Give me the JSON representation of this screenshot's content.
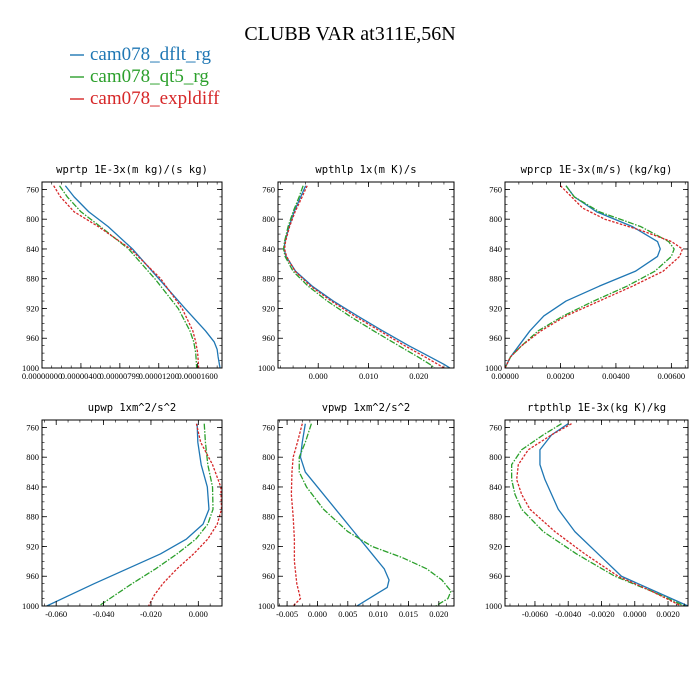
{
  "title": "CLUBB VAR at311E,56N",
  "legend": [
    {
      "name": "cam078_dflt_rg",
      "color": "#1f77b4"
    },
    {
      "name": "cam078_qt5_rg",
      "color": "#2ca02c"
    },
    {
      "name": "cam078_expldiff",
      "color": "#d62728"
    }
  ],
  "chart_data": [
    {
      "type": "line",
      "title": "wprtp  1E-3x(m kg)/(s kg)",
      "y_ticks": [
        760,
        800,
        840,
        880,
        920,
        960,
        1000
      ],
      "y_ticklabels": [
        "760",
        "800",
        "840",
        "880",
        "920",
        "960",
        "1000"
      ],
      "ylim": [
        1000,
        750
      ],
      "xlim": [
        0.0,
        1.85e-05
      ],
      "x_ticks": [
        0.0,
        4e-06,
        8e-06,
        1.2e-05,
        1.6e-05
      ],
      "x_ticklabels": [
        "0.00000000",
        "0.00000400",
        "0.00000799",
        "0.00001200",
        "0.00001600"
      ],
      "series": [
        {
          "name": "cam078_dflt_rg",
          "y": [
            755,
            770,
            790,
            810,
            840,
            880,
            920,
            950,
            965,
            975,
            985,
            1000
          ],
          "x": [
            2.4e-06,
            3.3e-06,
            4.8e-06,
            6.8e-06,
            9.3e-06,
            1.2e-05,
            1.47e-05,
            1.68e-05,
            1.77e-05,
            1.8e-05,
            1.81e-05,
            1.83e-05
          ]
        },
        {
          "name": "cam078_qt5_rg",
          "y": [
            755,
            770,
            790,
            810,
            840,
            880,
            920,
            950,
            965,
            980,
            1000
          ],
          "x": [
            1.8e-06,
            2.6e-06,
            4e-06,
            6e-06,
            8.9e-06,
            1.16e-05,
            1.4e-05,
            1.52e-05,
            1.56e-05,
            1.58e-05,
            1.59e-05
          ]
        },
        {
          "name": "cam078_expldiff",
          "y": [
            755,
            770,
            790,
            810,
            840,
            880,
            920,
            950,
            965,
            980,
            1000
          ],
          "x": [
            1.2e-06,
            1.9e-06,
            3.3e-06,
            5.8e-06,
            9.1e-06,
            1.22e-05,
            1.44e-05,
            1.55e-05,
            1.58e-05,
            1.6e-05,
            1.61e-05
          ]
        }
      ]
    },
    {
      "type": "line",
      "title": "wpthlp  1x(m K)/s",
      "y_ticks": [
        760,
        800,
        840,
        880,
        920,
        960,
        1000
      ],
      "y_ticklabels": [
        "760",
        "800",
        "840",
        "880",
        "920",
        "960",
        "1000"
      ],
      "ylim": [
        1000,
        750
      ],
      "xlim": [
        -0.008,
        0.027
      ],
      "x_ticks": [
        0.0,
        0.01,
        0.02
      ],
      "x_ticklabels": [
        "0.000",
        "0.010",
        "0.020"
      ],
      "series": [
        {
          "name": "cam078_dflt_rg",
          "y": [
            755,
            770,
            790,
            810,
            830,
            840,
            850,
            870,
            890,
            910,
            930,
            950,
            970,
            985,
            995,
            1000
          ],
          "x": [
            -0.0025,
            -0.0035,
            -0.0048,
            -0.0058,
            -0.0066,
            -0.0068,
            -0.0064,
            -0.0045,
            -0.0012,
            0.003,
            0.0078,
            0.0128,
            0.018,
            0.0222,
            0.025,
            0.0262
          ]
        },
        {
          "name": "cam078_qt5_rg",
          "y": [
            755,
            770,
            790,
            810,
            830,
            840,
            850,
            870,
            890,
            910,
            930,
            950,
            970,
            985,
            995,
            1000
          ],
          "x": [
            -0.003,
            -0.0038,
            -0.005,
            -0.006,
            -0.0067,
            -0.0069,
            -0.0066,
            -0.005,
            -0.002,
            0.0018,
            0.0062,
            0.011,
            0.016,
            0.0198,
            0.0222,
            0.0232
          ]
        },
        {
          "name": "cam078_expldiff",
          "y": [
            755,
            770,
            790,
            810,
            830,
            840,
            850,
            870,
            890,
            910,
            930,
            950,
            970,
            985,
            995,
            1000
          ],
          "x": [
            -0.0022,
            -0.0032,
            -0.0046,
            -0.0057,
            -0.0065,
            -0.0067,
            -0.0063,
            -0.0046,
            -0.0015,
            0.0026,
            0.0072,
            0.0122,
            0.0172,
            0.0212,
            0.0238,
            0.025
          ]
        }
      ]
    },
    {
      "type": "line",
      "title": "wprcp  1E-3x(m/s) (kg/kg)",
      "y_ticks": [
        760,
        800,
        840,
        880,
        920,
        960,
        1000
      ],
      "y_ticklabels": [
        "760",
        "800",
        "840",
        "880",
        "920",
        "960",
        "1000"
      ],
      "ylim": [
        1000,
        750
      ],
      "xlim": [
        0.0,
        0.0066
      ],
      "x_ticks": [
        0.0,
        0.002,
        0.004,
        0.006
      ],
      "x_ticklabels": [
        "0.00000",
        "0.00200",
        "0.00400",
        "0.00600"
      ],
      "series": [
        {
          "name": "cam078_dflt_rg",
          "y": [
            755,
            770,
            790,
            810,
            830,
            840,
            850,
            870,
            890,
            910,
            930,
            950,
            970,
            985,
            1000
          ],
          "x": [
            0.0022,
            0.0025,
            0.0033,
            0.0046,
            0.0055,
            0.0056,
            0.0055,
            0.0047,
            0.0034,
            0.0022,
            0.0014,
            0.0009,
            0.0005,
            0.0002,
            0.0
          ]
        },
        {
          "name": "cam078_qt5_rg",
          "y": [
            755,
            770,
            790,
            810,
            830,
            840,
            850,
            870,
            890,
            910,
            930,
            950,
            970,
            985,
            1000
          ],
          "x": [
            0.0022,
            0.0025,
            0.0034,
            0.0049,
            0.0059,
            0.0061,
            0.006,
            0.0054,
            0.0044,
            0.0032,
            0.0021,
            0.0012,
            0.0006,
            0.0002,
            0.0
          ]
        },
        {
          "name": "cam078_expldiff",
          "y": [
            755,
            770,
            785,
            800,
            815,
            830,
            840,
            850,
            870,
            890,
            910,
            930,
            950,
            970,
            985,
            1000
          ],
          "x": [
            0.002,
            0.0024,
            0.0028,
            0.0036,
            0.0049,
            0.006,
            0.0064,
            0.0063,
            0.0057,
            0.0046,
            0.0034,
            0.0022,
            0.0013,
            0.0006,
            0.0002,
            0.0
          ]
        }
      ]
    },
    {
      "type": "line",
      "title": "upwp  1xm^2/s^2",
      "y_ticks": [
        760,
        800,
        840,
        880,
        920,
        960,
        1000
      ],
      "y_ticklabels": [
        "760",
        "800",
        "840",
        "880",
        "920",
        "960",
        "1000"
      ],
      "ylim": [
        1000,
        750
      ],
      "xlim": [
        -0.066,
        0.01
      ],
      "x_ticks": [
        -0.06,
        -0.04,
        -0.02,
        0.0
      ],
      "x_ticklabels": [
        "-0.060",
        "-0.040",
        "-0.020",
        "0.000"
      ],
      "series": [
        {
          "name": "cam078_dflt_rg",
          "y": [
            755,
            780,
            810,
            840,
            870,
            890,
            910,
            930,
            950,
            970,
            985,
            1000
          ],
          "x": [
            -0.0005,
            -0.0002,
            0.0012,
            0.0038,
            0.0045,
            0.002,
            -0.005,
            -0.016,
            -0.03,
            -0.044,
            -0.054,
            -0.064
          ]
        },
        {
          "name": "cam078_qt5_rg",
          "y": [
            755,
            780,
            810,
            840,
            870,
            890,
            910,
            930,
            950,
            970,
            985,
            1000
          ],
          "x": [
            0.0025,
            0.003,
            0.004,
            0.006,
            0.0062,
            0.004,
            -0.001,
            -0.009,
            -0.018,
            -0.028,
            -0.035,
            -0.042
          ]
        },
        {
          "name": "cam078_expldiff",
          "y": [
            755,
            780,
            810,
            840,
            870,
            890,
            910,
            930,
            950,
            970,
            985,
            1000
          ],
          "x": [
            -0.0008,
            0.001,
            0.006,
            0.0095,
            0.0098,
            0.008,
            0.004,
            -0.002,
            -0.009,
            -0.015,
            -0.0185,
            -0.021
          ]
        }
      ]
    },
    {
      "type": "line",
      "title": "vpwp  1xm^2/s^2",
      "y_ticks": [
        760,
        800,
        840,
        880,
        920,
        960,
        1000
      ],
      "y_ticklabels": [
        "760",
        "800",
        "840",
        "880",
        "920",
        "960",
        "1000"
      ],
      "ylim": [
        1000,
        750
      ],
      "xlim": [
        -0.0065,
        0.0225
      ],
      "x_ticks": [
        -0.005,
        0.0,
        0.005,
        0.01,
        0.015,
        0.02
      ],
      "x_ticklabels": [
        "-0.005",
        "0.000",
        "0.005",
        "0.010",
        "0.015",
        "0.020"
      ],
      "series": [
        {
          "name": "cam078_dflt_rg",
          "y": [
            755,
            780,
            800,
            820,
            840,
            870,
            900,
            930,
            950,
            965,
            975,
            985,
            1000
          ],
          "x": [
            -0.002,
            -0.0025,
            -0.0028,
            -0.002,
            0.0,
            0.003,
            0.006,
            0.009,
            0.011,
            0.0118,
            0.0115,
            0.0095,
            0.0065
          ]
        },
        {
          "name": "cam078_qt5_rg",
          "y": [
            755,
            780,
            800,
            820,
            840,
            870,
            900,
            920,
            935,
            950,
            965,
            980,
            990,
            1000
          ],
          "x": [
            -0.001,
            -0.002,
            -0.003,
            -0.003,
            -0.0018,
            0.001,
            0.005,
            0.009,
            0.014,
            0.018,
            0.0205,
            0.022,
            0.0215,
            0.0195
          ]
        },
        {
          "name": "cam078_expldiff",
          "y": [
            755,
            780,
            800,
            820,
            850,
            880,
            910,
            940,
            970,
            990,
            1000
          ],
          "x": [
            -0.0025,
            -0.0033,
            -0.004,
            -0.0042,
            -0.0043,
            -0.004,
            -0.0038,
            -0.0038,
            -0.0034,
            -0.0028,
            -0.004
          ]
        }
      ]
    },
    {
      "type": "line",
      "title": "rtpthlp  1E-3x(kg K)/kg",
      "y_ticks": [
        760,
        800,
        840,
        880,
        920,
        960,
        1000
      ],
      "y_ticklabels": [
        "760",
        "800",
        "840",
        "880",
        "920",
        "960",
        "1000"
      ],
      "ylim": [
        1000,
        750
      ],
      "xlim": [
        -0.0078,
        0.0032
      ],
      "x_ticks": [
        -0.006,
        -0.004,
        -0.002,
        0.0,
        0.002
      ],
      "x_ticklabels": [
        "-0.0060",
        "-0.0040",
        "-0.0020",
        "0.0000",
        "0.0020"
      ],
      "series": [
        {
          "name": "cam078_dflt_rg",
          "y": [
            755,
            770,
            790,
            810,
            830,
            850,
            870,
            900,
            930,
            960,
            980,
            1000
          ],
          "x": [
            -0.004,
            -0.005,
            -0.0057,
            -0.0057,
            -0.0054,
            -0.005,
            -0.0046,
            -0.0036,
            -0.0022,
            -0.0008,
            0.0012,
            0.0032
          ]
        },
        {
          "name": "cam078_qt5_rg",
          "y": [
            755,
            770,
            790,
            810,
            830,
            850,
            870,
            900,
            930,
            960,
            980,
            1000
          ],
          "x": [
            -0.0044,
            -0.0055,
            -0.0068,
            -0.0074,
            -0.0074,
            -0.0072,
            -0.0068,
            -0.0055,
            -0.0035,
            -0.0012,
            0.001,
            0.003
          ]
        },
        {
          "name": "cam078_expldiff",
          "y": [
            755,
            770,
            790,
            810,
            830,
            850,
            870,
            900,
            930,
            960,
            980,
            1000
          ],
          "x": [
            -0.0038,
            -0.005,
            -0.0064,
            -0.007,
            -0.0071,
            -0.0068,
            -0.0063,
            -0.0048,
            -0.003,
            -0.001,
            0.001,
            0.0028
          ]
        }
      ]
    }
  ]
}
